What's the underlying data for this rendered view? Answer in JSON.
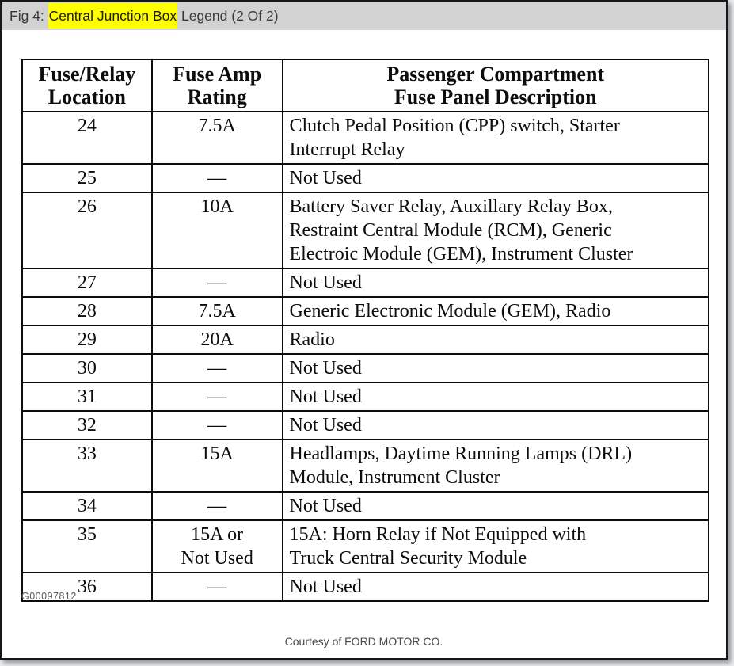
{
  "titlebar": {
    "prefix": "Fig 4: ",
    "highlighted_text": "Central Junction Box",
    "suffix": " Legend (2 Of 2)"
  },
  "table": {
    "columns": [
      {
        "line1": "Fuse/Relay",
        "line2": "Location"
      },
      {
        "line1": "Fuse Amp",
        "line2": "Rating"
      },
      {
        "line1": "Passenger Compartment",
        "line2": "Fuse Panel Description"
      }
    ],
    "rows": [
      {
        "location": "24",
        "rating": "7.5A",
        "description": "Clutch Pedal Position (CPP) switch, Starter\nInterrupt Relay"
      },
      {
        "location": "25",
        "rating": "—",
        "description": "Not Used"
      },
      {
        "location": "26",
        "rating": "10A",
        "description": "Battery Saver Relay, Auxillary Relay Box,\nRestraint Central Module (RCM), Generic\nElectroic Module (GEM), Instrument Cluster"
      },
      {
        "location": "27",
        "rating": "—",
        "description": "Not Used"
      },
      {
        "location": "28",
        "rating": "7.5A",
        "description": "Generic Electronic Module (GEM), Radio"
      },
      {
        "location": "29",
        "rating": "20A",
        "description": "Radio"
      },
      {
        "location": "30",
        "rating": "—",
        "description": "Not Used"
      },
      {
        "location": "31",
        "rating": "—",
        "description": "Not Used"
      },
      {
        "location": "32",
        "rating": "—",
        "description": "Not Used"
      },
      {
        "location": "33",
        "rating": "15A",
        "description": "Headlamps, Daytime Running Lamps (DRL)\nModule, Instrument Cluster"
      },
      {
        "location": "34",
        "rating": "—",
        "description": "Not Used"
      },
      {
        "location": "35",
        "rating": "15A or\nNot Used",
        "description": "15A: Horn Relay if Not Equipped with\nTruck Central Security Module"
      },
      {
        "location": "36",
        "rating": "—",
        "description": "Not Used"
      }
    ]
  },
  "footer": {
    "figure_id": "G00097812",
    "courtesy": "Courtesy of FORD MOTOR CO."
  },
  "colors": {
    "highlight": "#ffff00",
    "titlebar_bg": "#d2d2d2",
    "table_border": "#0d0d0d",
    "page_border": "#15181b"
  }
}
